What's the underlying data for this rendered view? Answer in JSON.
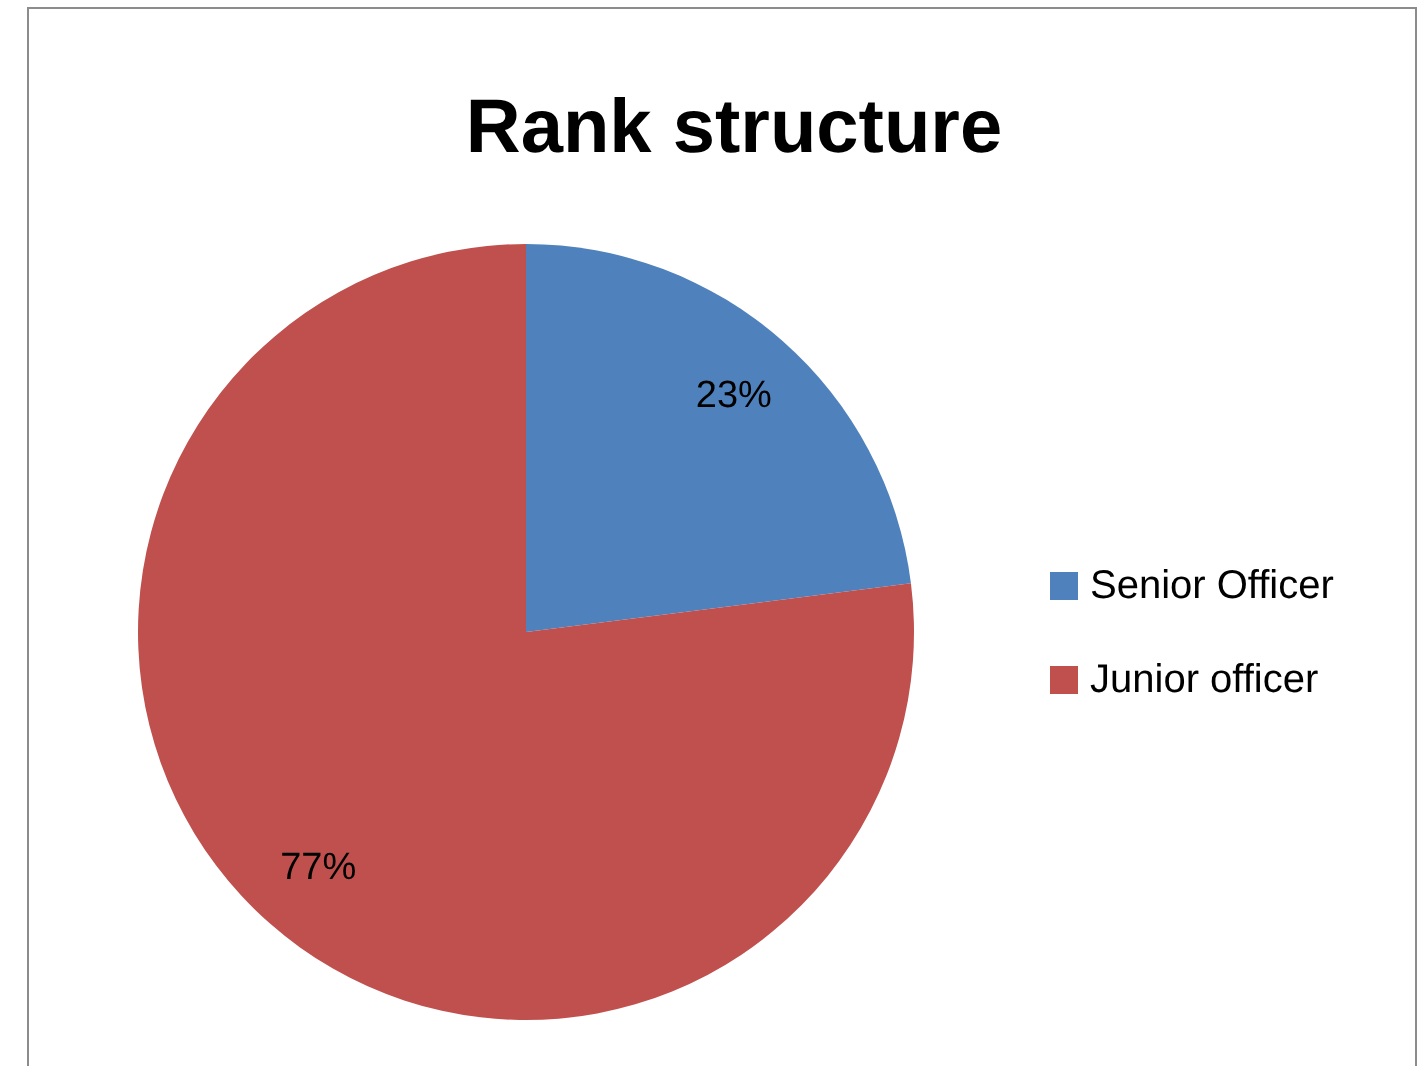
{
  "chart_data": {
    "type": "pie",
    "title": "Rank structure",
    "categories": [
      "Senior Officer",
      "Junior officer"
    ],
    "values": [
      23,
      77
    ],
    "colors": [
      "#4f81bd",
      "#c0504d"
    ],
    "value_labels": [
      "23%",
      "77%"
    ],
    "legend": "right"
  }
}
